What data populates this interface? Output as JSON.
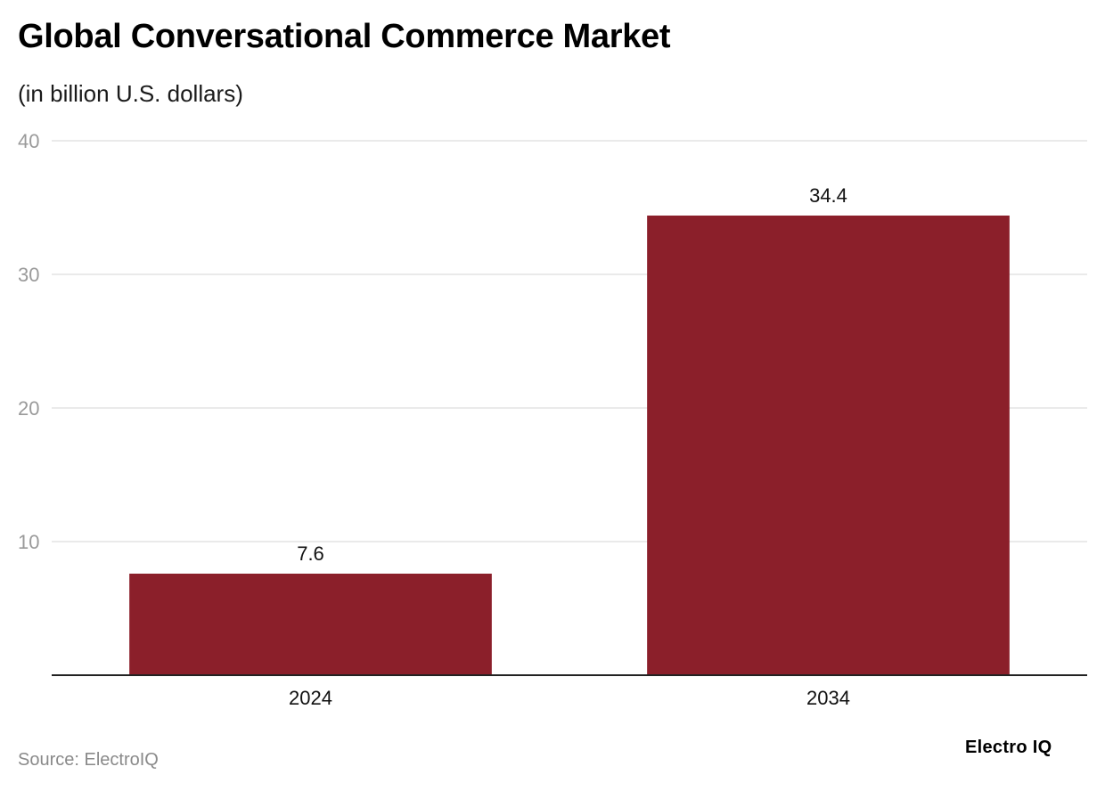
{
  "chart_data": {
    "type": "bar",
    "title": "Global Conversational Commerce Market",
    "subtitle": "(in billion U.S. dollars)",
    "categories": [
      "2024",
      "2034"
    ],
    "values": [
      7.6,
      34.4
    ],
    "value_labels": [
      "7.6",
      "34.4"
    ],
    "ylim": [
      0,
      40
    ],
    "yticks": [
      10,
      20,
      30,
      40
    ],
    "ytick_labels": [
      "10",
      "20",
      "30",
      "40"
    ],
    "grid": true,
    "legend": "none",
    "bar_color": "#8B1F2A"
  },
  "footer": {
    "source": "Source: ElectroIQ",
    "brand": "Electro IQ"
  }
}
